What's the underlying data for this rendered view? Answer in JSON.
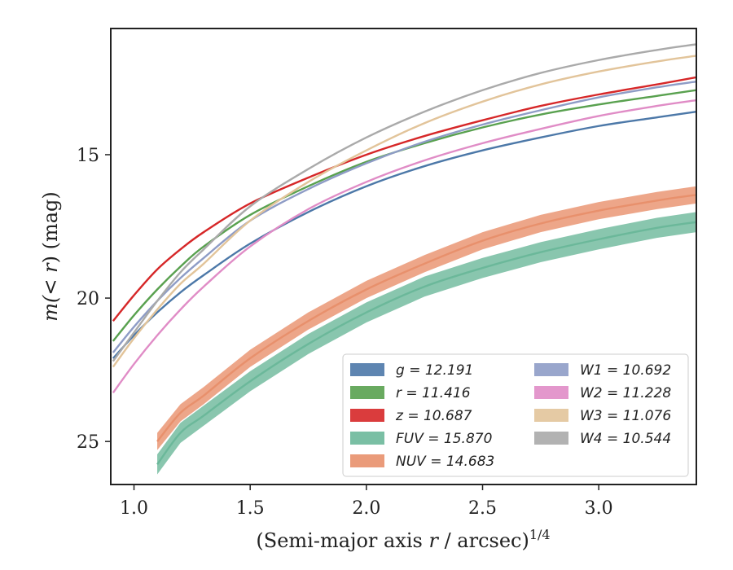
{
  "chart_data": {
    "type": "line",
    "xlabel_main": "(Semi-major axis ",
    "xlabel_var": "r",
    "xlabel_unit": " / arcsec)",
    "xlabel_exp": "1/4",
    "ylabel_prefix": "m(",
    "ylabel_var": "< r",
    "ylabel_suffix": ") (mag)",
    "xlim": [
      0.9,
      3.42
    ],
    "ylim": [
      26.5,
      10.6
    ],
    "y_inverted": true,
    "grid": false,
    "legend_position": "lower-right",
    "xticks": [
      1.0,
      1.5,
      2.0,
      2.5,
      3.0
    ],
    "xtick_labels": [
      "1.0",
      "1.5",
      "2.0",
      "2.5",
      "3.0"
    ],
    "yticks": [
      15,
      20,
      25
    ],
    "ytick_labels": [
      "15",
      "20",
      "25"
    ],
    "x_samples": [
      0.91,
      1.0,
      1.1,
      1.2,
      1.3,
      1.5,
      1.75,
      2.0,
      2.25,
      2.5,
      2.75,
      3.0,
      3.25,
      3.42
    ],
    "series": [
      {
        "name": "g = 12.191",
        "color": "#4c78a8",
        "x": [
          0.91,
          1.0,
          1.1,
          1.2,
          1.3,
          1.5,
          1.75,
          2.0,
          2.25,
          2.5,
          2.75,
          3.0,
          3.25,
          3.42
        ],
        "y": [
          22.1,
          21.3,
          20.5,
          19.8,
          19.2,
          18.1,
          17.0,
          16.1,
          15.4,
          14.85,
          14.4,
          14.0,
          13.7,
          13.5
        ]
      },
      {
        "name": "r = 11.416",
        "color": "#59a14f",
        "x": [
          0.91,
          1.0,
          1.1,
          1.2,
          1.3,
          1.5,
          1.75,
          2.0,
          2.25,
          2.5,
          2.75,
          3.0,
          3.25,
          3.42
        ],
        "y": [
          21.5,
          20.6,
          19.7,
          18.9,
          18.2,
          17.1,
          16.1,
          15.25,
          14.6,
          14.05,
          13.6,
          13.25,
          12.95,
          12.75
        ]
      },
      {
        "name": "z = 10.687",
        "color": "#d62728",
        "x": [
          0.91,
          1.0,
          1.1,
          1.2,
          1.3,
          1.5,
          1.75,
          2.0,
          2.25,
          2.5,
          2.75,
          3.0,
          3.25,
          3.42
        ],
        "y": [
          20.8,
          19.9,
          19.0,
          18.3,
          17.7,
          16.7,
          15.8,
          15.0,
          14.35,
          13.8,
          13.3,
          12.9,
          12.55,
          12.3
        ]
      },
      {
        "name": "FUV = 15.870",
        "color": "#6bb89a",
        "band_width": 0.35,
        "x": [
          1.1,
          1.2,
          1.3,
          1.5,
          1.75,
          2.0,
          2.25,
          2.5,
          2.75,
          3.0,
          3.25,
          3.42
        ],
        "y": [
          25.8,
          24.7,
          24.1,
          22.9,
          21.6,
          20.5,
          19.6,
          18.95,
          18.4,
          17.95,
          17.55,
          17.35
        ]
      },
      {
        "name": "NUV = 14.683",
        "color": "#e8906c",
        "band_width": 0.3,
        "x": [
          1.1,
          1.2,
          1.3,
          1.5,
          1.75,
          2.0,
          2.25,
          2.5,
          2.75,
          3.0,
          3.25,
          3.42
        ],
        "y": [
          25.0,
          24.0,
          23.4,
          22.1,
          20.8,
          19.7,
          18.8,
          18.0,
          17.4,
          16.95,
          16.6,
          16.4
        ]
      },
      {
        "name": "W1 = 10.692",
        "color": "#8e9cc6",
        "x": [
          0.91,
          1.0,
          1.1,
          1.2,
          1.3,
          1.5,
          1.75,
          2.0,
          2.25,
          2.5,
          2.75,
          3.0,
          3.25,
          3.42
        ],
        "y": [
          21.9,
          21.0,
          20.1,
          19.3,
          18.6,
          17.3,
          16.2,
          15.3,
          14.55,
          13.95,
          13.45,
          13.0,
          12.65,
          12.45
        ]
      },
      {
        "name": "W2 = 11.228",
        "color": "#e08cc6",
        "x": [
          0.91,
          1.0,
          1.1,
          1.2,
          1.3,
          1.5,
          1.75,
          2.0,
          2.25,
          2.5,
          2.75,
          3.0,
          3.25,
          3.42
        ],
        "y": [
          23.3,
          22.3,
          21.3,
          20.4,
          19.6,
          18.2,
          16.9,
          15.95,
          15.2,
          14.6,
          14.1,
          13.65,
          13.3,
          13.1
        ]
      },
      {
        "name": "W3 = 11.076",
        "color": "#e2c49a",
        "x": [
          0.91,
          1.0,
          1.1,
          1.2,
          1.3,
          1.5,
          1.75,
          2.0,
          2.25,
          2.5,
          2.75,
          3.0,
          3.25,
          3.42
        ],
        "y": [
          22.4,
          21.4,
          20.4,
          19.5,
          18.8,
          17.3,
          15.95,
          14.85,
          13.9,
          13.15,
          12.55,
          12.1,
          11.75,
          11.55
        ]
      },
      {
        "name": "W4 = 10.544",
        "color": "#aaaaaa",
        "x": [
          0.91,
          1.0,
          1.1,
          1.2,
          1.3,
          1.5,
          1.75,
          2.0,
          2.25,
          2.5,
          2.75,
          3.0,
          3.25,
          3.42
        ],
        "y": [
          22.2,
          21.2,
          20.1,
          19.1,
          18.3,
          16.8,
          15.5,
          14.4,
          13.5,
          12.75,
          12.15,
          11.7,
          11.35,
          11.15
        ]
      }
    ],
    "legend_columns": [
      [
        "g = 12.191",
        "r = 11.416",
        "z = 10.687",
        "FUV = 15.870",
        "NUV = 14.683"
      ],
      [
        "W1 = 10.692",
        "W2 = 11.228",
        "W3 = 11.076",
        "W4 = 10.544"
      ]
    ]
  }
}
